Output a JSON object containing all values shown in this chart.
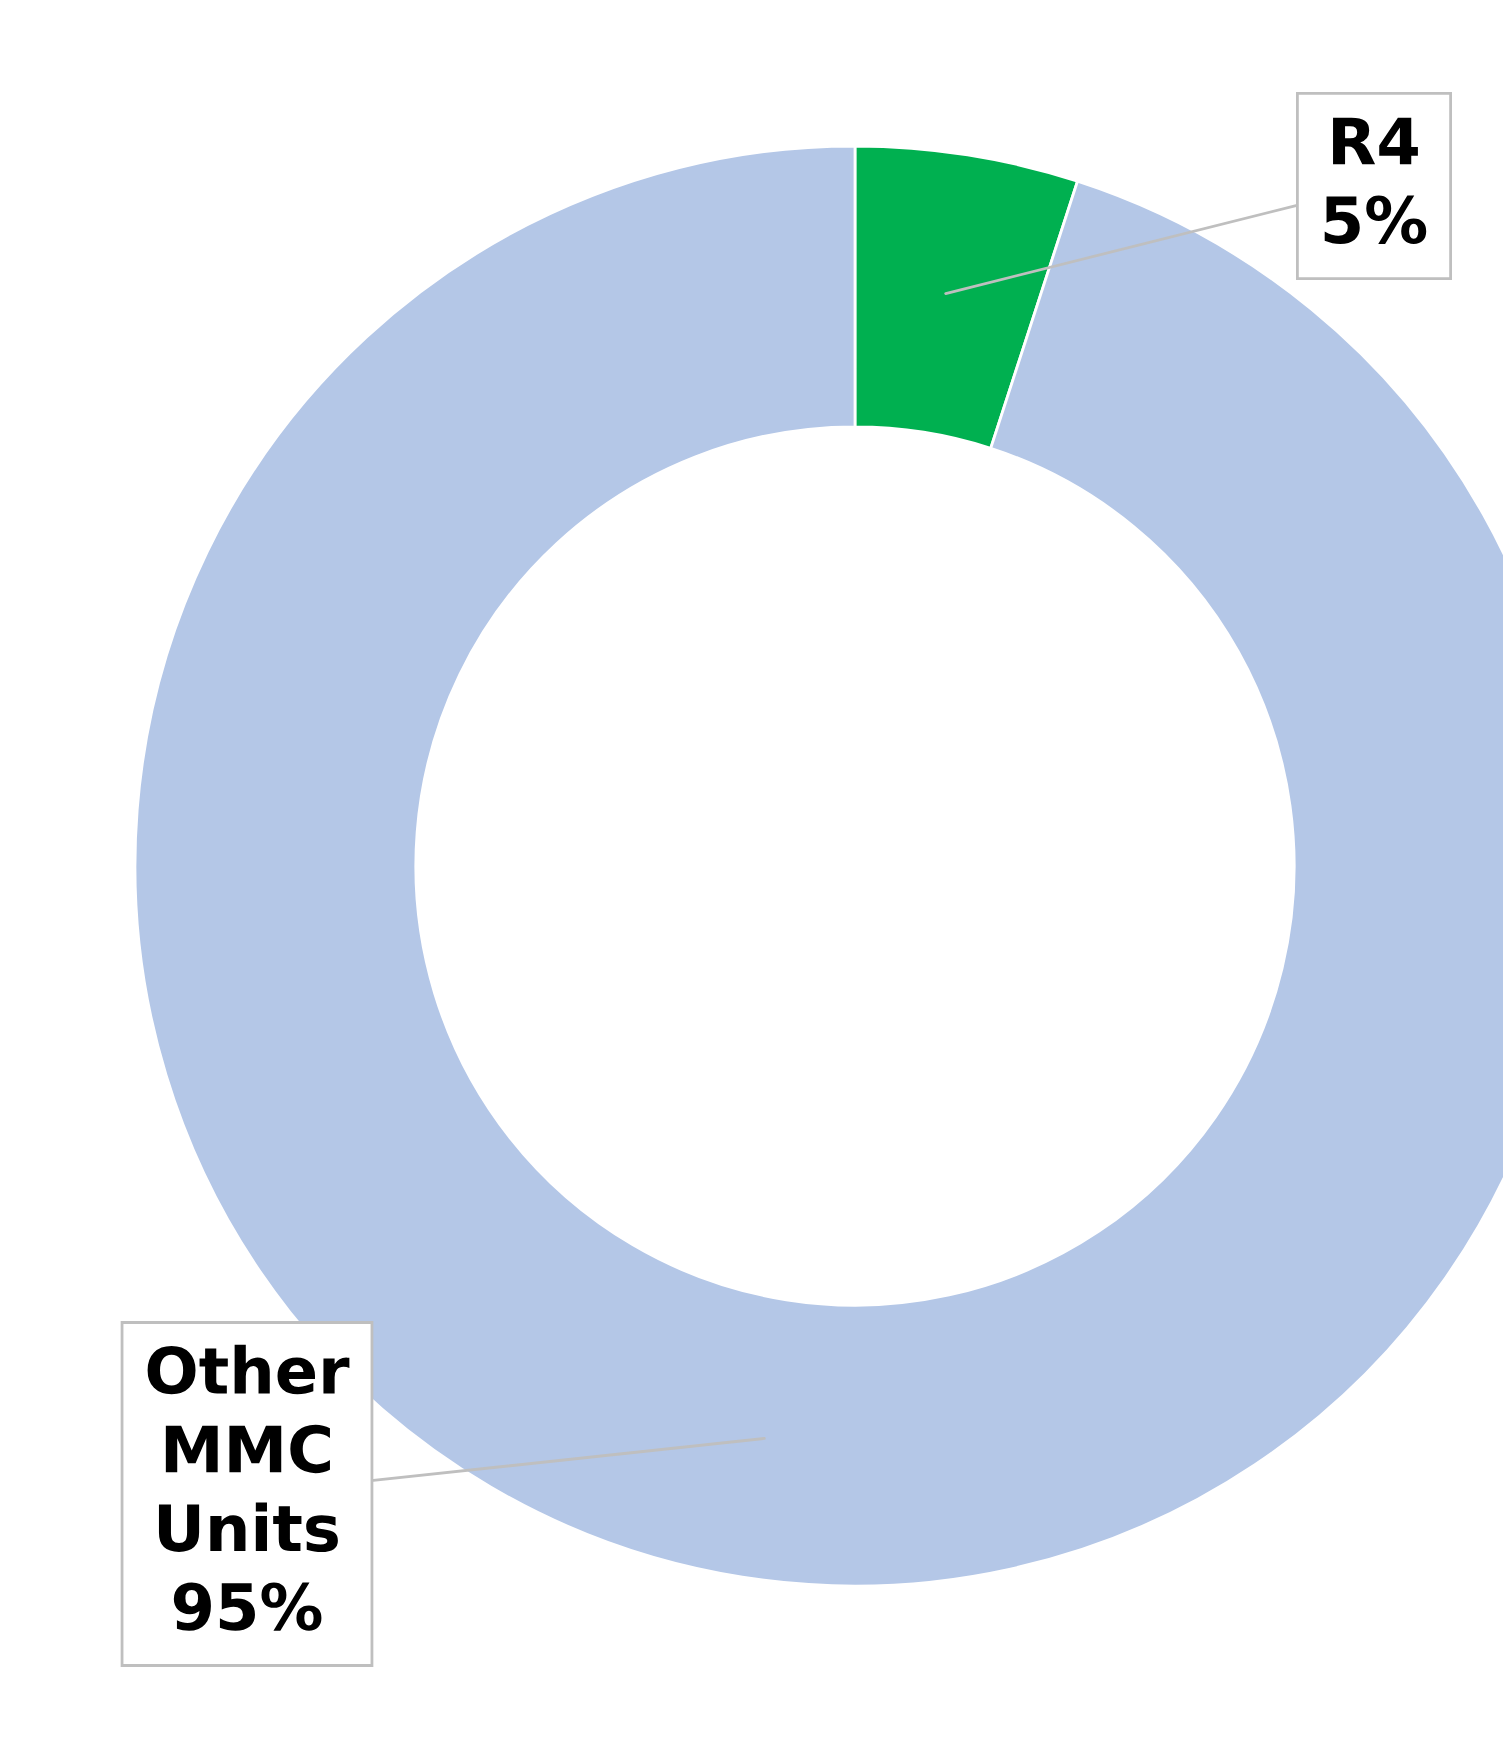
{
  "chart_data": {
    "type": "donut",
    "categories": [
      "R4",
      "Other MMC Units"
    ],
    "values": [
      5,
      95
    ],
    "value_labels": [
      "5%",
      "95%"
    ],
    "colors": [
      "#00b050",
      "#b4c7e7"
    ]
  }
}
